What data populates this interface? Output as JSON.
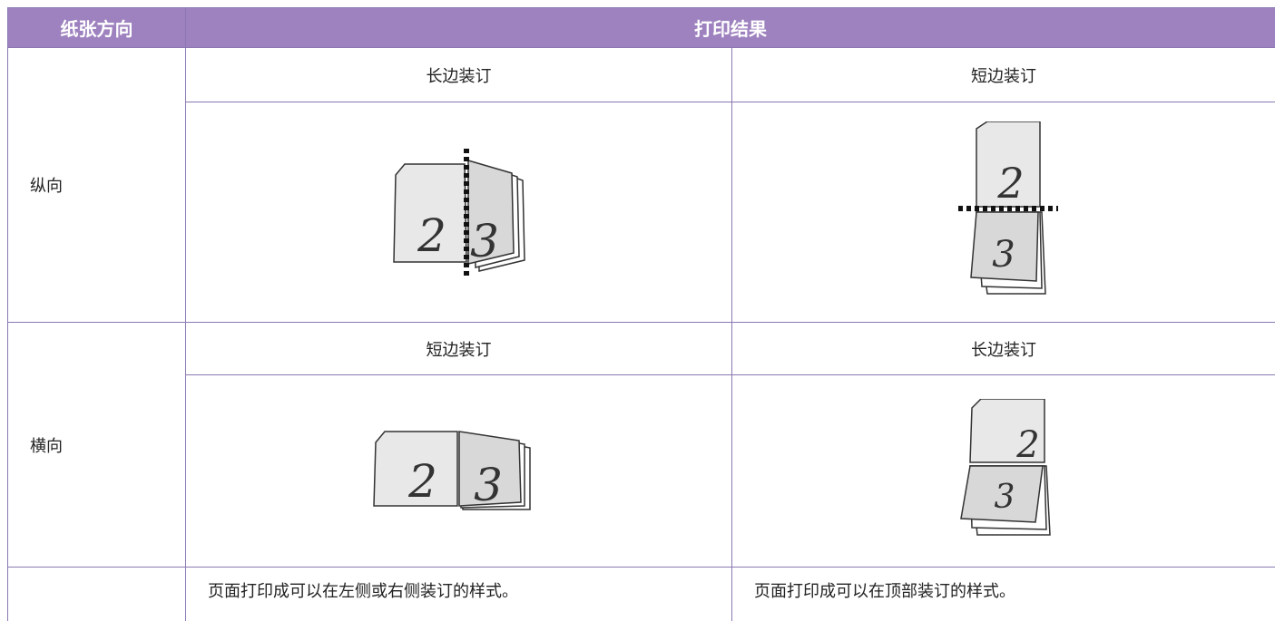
{
  "table": {
    "header": [
      "纸张方向",
      "打印结果"
    ],
    "rows": [
      {
        "orientation": "纵向",
        "options": [
          "长边装订",
          "短边装订"
        ],
        "figures": [
          [
            "2",
            "3"
          ],
          [
            "2",
            "3"
          ]
        ]
      },
      {
        "orientation": "横向",
        "options": [
          "短边装订",
          "长边装订"
        ],
        "figures": [
          [
            "2",
            "3"
          ],
          [
            "2",
            "3"
          ]
        ]
      }
    ],
    "notes": [
      "页面打印成可以在左侧或右侧装订的样式。",
      "页面打印成可以在顶部装订的样式。"
    ]
  }
}
